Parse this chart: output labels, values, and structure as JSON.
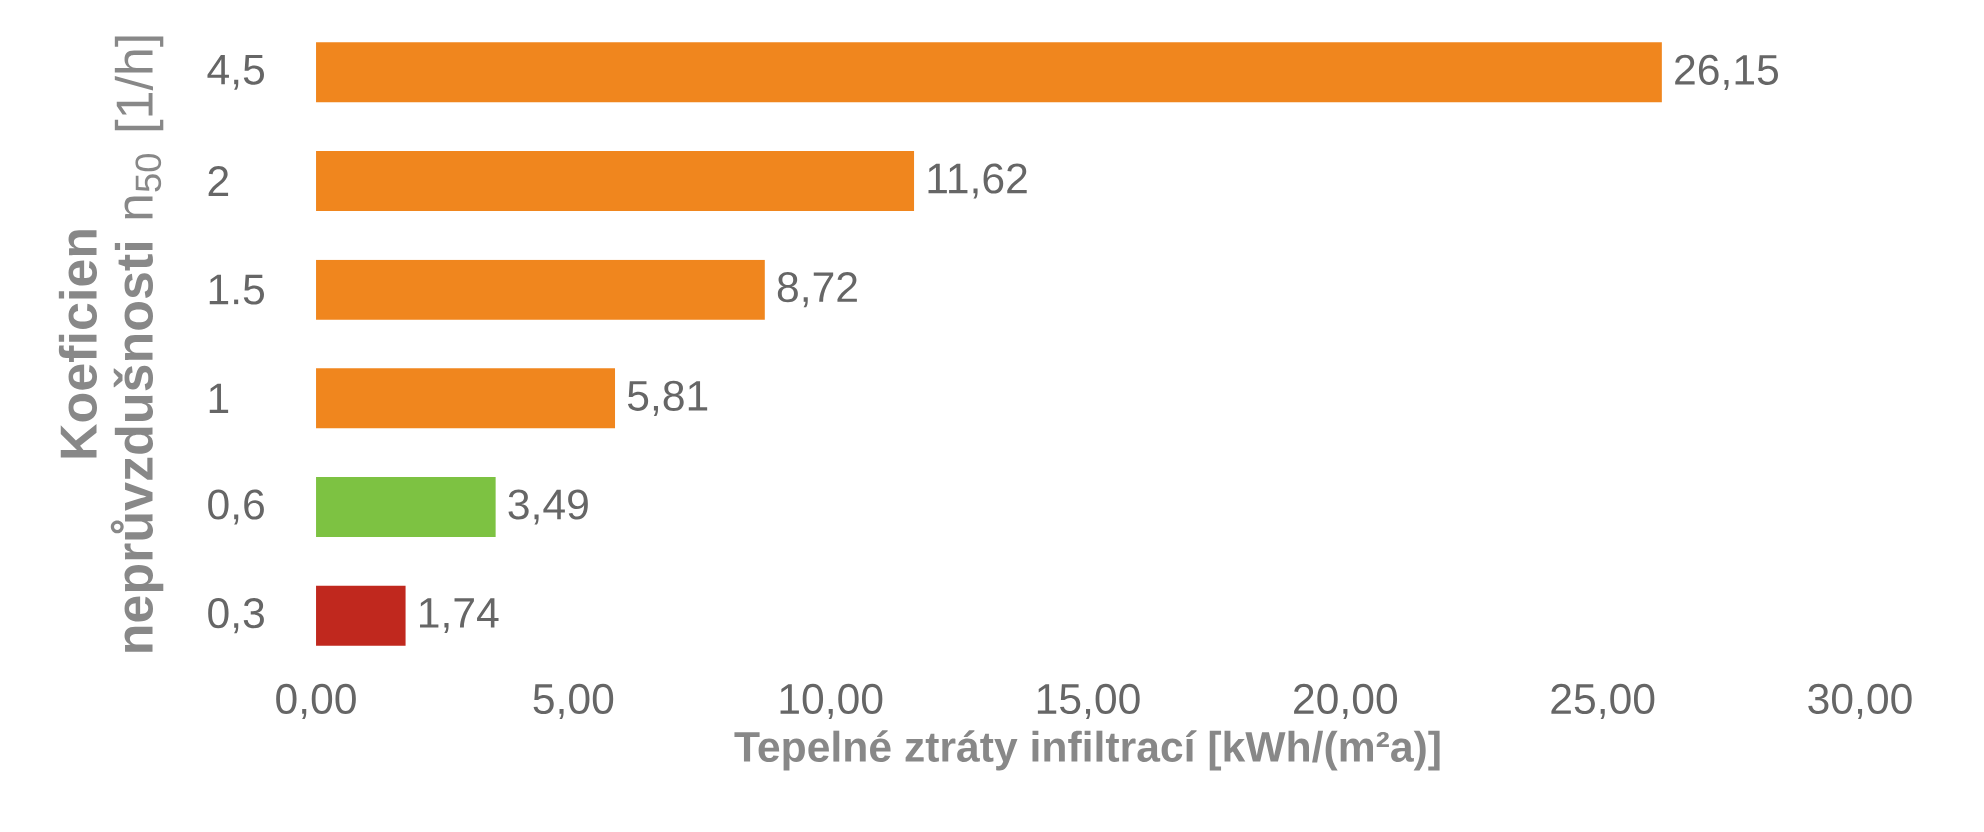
{
  "chart_data": {
    "type": "bar",
    "orientation": "horizontal",
    "categories": [
      "4,5",
      "2",
      "1.5",
      "1",
      "0,6",
      "0,3"
    ],
    "values": [
      26.15,
      11.62,
      8.72,
      5.81,
      3.49,
      1.74
    ],
    "value_labels": [
      "26,15",
      "11,62",
      "8,72",
      "5,81",
      "3,49",
      "1,74"
    ],
    "colors": [
      "#f0861e",
      "#f0861e",
      "#f0861e",
      "#f0861e",
      "#7dc242",
      "#c0281e"
    ],
    "xlim": [
      0,
      30
    ],
    "xticks": [
      {
        "value": 0,
        "label": "0,00"
      },
      {
        "value": 5,
        "label": "5,00"
      },
      {
        "value": 10,
        "label": "10,00"
      },
      {
        "value": 15,
        "label": "15,00"
      },
      {
        "value": 20,
        "label": "20,00"
      },
      {
        "value": 25,
        "label": "25,00"
      },
      {
        "value": 30,
        "label": "30,00"
      }
    ],
    "xlabel": "Tepelné ztráty infiltrací [kWh/(m²a)]",
    "ylabel": "**Koeficien neprůvzdušnosti** n$_{50}$ [1/h]"
  }
}
